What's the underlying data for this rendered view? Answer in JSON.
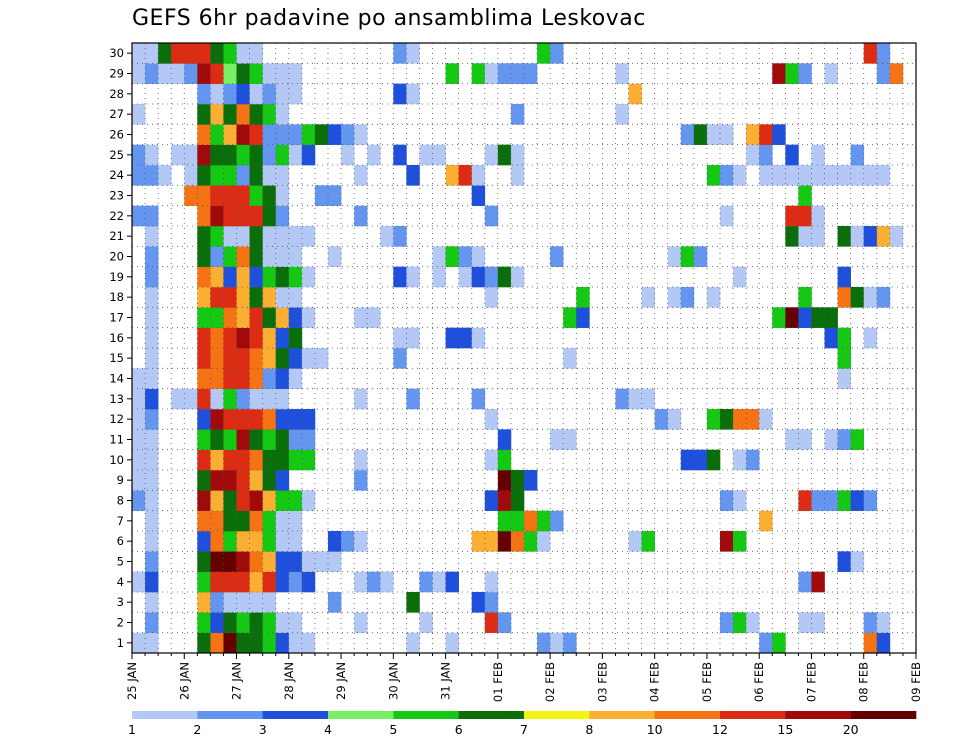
{
  "chart_data": {
    "type": "heatmap",
    "title": "GEFS 6hr padavine po ansamblima Leskovac",
    "members": [
      1,
      2,
      3,
      4,
      5,
      6,
      7,
      8,
      9,
      10,
      11,
      12,
      13,
      14,
      15,
      16,
      17,
      18,
      19,
      20,
      21,
      22,
      23,
      24,
      25,
      26,
      27,
      28,
      29,
      30
    ],
    "x_ticks": [
      "25 JAN",
      "26 JAN",
      "27 JAN",
      "28 JAN",
      "29 JAN",
      "30 JAN",
      "31 JAN",
      "01 FEB",
      "02 FEB",
      "03 FEB",
      "04 FEB",
      "05 FEB",
      "06 FEB",
      "07 FEB",
      "08 FEB",
      "09 FEB"
    ],
    "steps_per_day": 4,
    "n_steps": 60,
    "grid": true,
    "colorbar": {
      "boundaries": [
        "1",
        "2",
        "3",
        "4",
        "5",
        "6",
        "7",
        "8",
        "10",
        "12",
        "15",
        "20"
      ],
      "colors": [
        "#b4c8f5",
        "#6496f0",
        "#1e50dc",
        "#78f064",
        "#14c814",
        "#0a6e0a",
        "#f0f514",
        "#faaf32",
        "#f57314",
        "#dc2d14",
        "#a00a0a",
        "#640000"
      ]
    },
    "values": {
      "30": {
        "0": 1,
        "1": 1,
        "2": 6,
        "3": 14,
        "4": 14,
        "5": 12,
        "6": 6,
        "7": 5,
        "8": 1,
        "9": 1,
        "20": 2,
        "21": 1,
        "31": 5,
        "32": 2,
        "56": 12,
        "57": 2
      },
      "29": {
        "0": 1,
        "1": 2,
        "2": 1,
        "3": 1,
        "4": 2,
        "5": 15,
        "6": 12,
        "7": 4,
        "8": 6,
        "9": 5,
        "10": 1,
        "11": 1,
        "12": 1,
        "24": 5,
        "26": 5,
        "27": 1,
        "28": 2,
        "29": 2,
        "30": 2,
        "37": 1,
        "49": 15,
        "50": 5,
        "51": 2,
        "53": 1,
        "57": 2,
        "58": 10
      },
      "28": {
        "5": 2,
        "6": 1,
        "7": 2,
        "8": 3,
        "9": 1,
        "10": 2,
        "11": 1,
        "12": 1,
        "20": 3,
        "21": 1,
        "38": 8
      },
      "27": {
        "0": 1,
        "5": 6,
        "6": 8,
        "7": 6,
        "8": 10,
        "9": 6,
        "10": 5,
        "11": 1,
        "29": 2,
        "37": 1
      },
      "26": {
        "5": 10,
        "6": 5,
        "7": 8,
        "8": 15,
        "9": 12,
        "10": 2,
        "11": 2,
        "12": 2,
        "13": 5,
        "14": 6,
        "15": 3,
        "16": 2,
        "17": 1,
        "42": 2,
        "43": 6,
        "44": 1,
        "45": 1,
        "47": 8,
        "48": 12,
        "49": 3
      },
      "25": {
        "0": 2,
        "1": 1,
        "3": 1,
        "4": 1,
        "5": 15,
        "6": 6,
        "7": 6,
        "8": 5,
        "9": 6,
        "10": 2,
        "11": 5,
        "12": 1,
        "13": 3,
        "16": 1,
        "18": 1,
        "20": 3,
        "22": 1,
        "23": 1,
        "27": 1,
        "28": 6,
        "29": 1,
        "47": 1,
        "48": 2,
        "50": 3,
        "52": 1,
        "55": 2
      },
      "24": {
        "0": 2,
        "1": 2,
        "2": 1,
        "4": 1,
        "5": 6,
        "6": 5,
        "7": 5,
        "8": 2,
        "9": 6,
        "10": 1,
        "11": 1,
        "17": 1,
        "21": 3,
        "24": 8,
        "25": 12,
        "26": 1,
        "29": 1,
        "44": 5,
        "45": 2,
        "46": 1,
        "48": 1,
        "49": 1,
        "50": 1,
        "51": 1,
        "52": 1,
        "53": 1,
        "54": 1,
        "55": 1,
        "56": 1,
        "57": 1
      },
      "23": {
        "4": 10,
        "5": 10,
        "6": 12,
        "7": 12,
        "8": 12,
        "9": 5,
        "10": 6,
        "11": 1,
        "14": 2,
        "15": 2,
        "26": 3,
        "51": 5
      },
      "22": {
        "0": 2,
        "1": 2,
        "5": 10,
        "6": 15,
        "7": 12,
        "8": 12,
        "9": 12,
        "10": 6,
        "11": 2,
        "17": 2,
        "27": 2,
        "45": 1,
        "50": 12,
        "51": 12,
        "52": 1
      },
      "21": {
        "1": 1,
        "5": 6,
        "6": 5,
        "7": 1,
        "8": 1,
        "9": 6,
        "10": 1,
        "11": 1,
        "12": 1,
        "13": 1,
        "19": 1,
        "20": 2,
        "50": 6,
        "51": 1,
        "52": 1,
        "54": 6,
        "55": 1,
        "56": 3,
        "57": 8,
        "58": 1
      },
      "20": {
        "1": 2,
        "5": 6,
        "6": 2,
        "7": 5,
        "8": 10,
        "9": 6,
        "10": 1,
        "11": 1,
        "12": 1,
        "15": 1,
        "23": 1,
        "24": 5,
        "25": 2,
        "26": 1,
        "32": 2,
        "41": 1,
        "42": 5,
        "43": 2
      },
      "19": {
        "1": 2,
        "5": 10,
        "6": 8,
        "7": 3,
        "8": 8,
        "9": 3,
        "10": 5,
        "11": 6,
        "12": 5,
        "13": 1,
        "20": 3,
        "21": 1,
        "23": 1,
        "25": 1,
        "26": 3,
        "27": 2,
        "28": 6,
        "29": 1,
        "46": 1,
        "54": 3
      },
      "18": {
        "1": 1,
        "5": 8,
        "6": 12,
        "7": 12,
        "8": 8,
        "9": 6,
        "10": 8,
        "11": 1,
        "12": 1,
        "27": 1,
        "34": 5,
        "39": 1,
        "41": 1,
        "42": 2,
        "44": 1,
        "51": 5,
        "54": 10,
        "55": 6,
        "56": 1,
        "57": 2
      },
      "17": {
        "1": 1,
        "5": 5,
        "6": 5,
        "7": 10,
        "8": 8,
        "9": 12,
        "10": 6,
        "11": 8,
        "12": 3,
        "13": 1,
        "17": 1,
        "18": 1,
        "33": 5,
        "34": 3,
        "49": 5,
        "50": 20,
        "51": 3,
        "52": 6,
        "53": 6
      },
      "16": {
        "1": 1,
        "5": 12,
        "6": 10,
        "7": 12,
        "8": 15,
        "9": 12,
        "10": 8,
        "11": 3,
        "12": 6,
        "20": 1,
        "21": 1,
        "24": 3,
        "25": 3,
        "26": 1,
        "53": 3,
        "54": 5,
        "56": 1
      },
      "15": {
        "1": 1,
        "5": 12,
        "6": 10,
        "7": 12,
        "8": 12,
        "9": 10,
        "10": 8,
        "11": 6,
        "12": 3,
        "13": 1,
        "14": 1,
        "20": 2,
        "33": 1,
        "54": 5
      },
      "14": {
        "0": 1,
        "1": 1,
        "5": 10,
        "6": 10,
        "7": 12,
        "8": 12,
        "9": 10,
        "10": 2,
        "11": 3,
        "12": 1,
        "54": 1
      },
      "13": {
        "0": 1,
        "1": 3,
        "3": 1,
        "4": 1,
        "5": 12,
        "6": 1,
        "7": 5,
        "8": 2,
        "9": 1,
        "10": 1,
        "11": 1,
        "17": 1,
        "21": 2,
        "26": 2,
        "37": 2,
        "38": 1,
        "39": 1
      },
      "12": {
        "0": 1,
        "1": 2,
        "5": 3,
        "6": 15,
        "7": 12,
        "8": 12,
        "9": 12,
        "10": 10,
        "11": 3,
        "12": 3,
        "13": 3,
        "27": 1,
        "40": 2,
        "41": 1,
        "44": 5,
        "45": 6,
        "46": 10,
        "47": 10,
        "48": 1
      },
      "11": {
        "0": 1,
        "1": 1,
        "5": 5,
        "6": 6,
        "7": 5,
        "8": 15,
        "9": 6,
        "10": 5,
        "11": 6,
        "12": 2,
        "13": 2,
        "28": 3,
        "32": 1,
        "33": 1,
        "50": 1,
        "51": 1,
        "53": 1,
        "54": 2,
        "55": 5
      },
      "10": {
        "0": 1,
        "1": 1,
        "5": 12,
        "6": 8,
        "7": 12,
        "8": 12,
        "9": 10,
        "10": 6,
        "11": 6,
        "12": 5,
        "13": 5,
        "17": 1,
        "27": 1,
        "28": 5,
        "42": 3,
        "43": 3,
        "44": 6,
        "46": 1,
        "47": 2
      },
      "9": {
        "0": 1,
        "1": 1,
        "5": 6,
        "6": 15,
        "7": 15,
        "8": 12,
        "9": 8,
        "10": 6,
        "11": 3,
        "17": 2,
        "28": 20,
        "29": 6,
        "30": 3
      },
      "8": {
        "0": 2,
        "1": 1,
        "5": 15,
        "6": 8,
        "7": 6,
        "8": 12,
        "9": 15,
        "10": 8,
        "11": 5,
        "12": 5,
        "13": 1,
        "27": 3,
        "28": 15,
        "29": 6,
        "45": 2,
        "46": 1,
        "51": 12,
        "52": 2,
        "53": 2,
        "54": 5,
        "55": 3,
        "56": 2
      },
      "7": {
        "1": 1,
        "5": 10,
        "6": 10,
        "7": 6,
        "8": 6,
        "9": 10,
        "10": 5,
        "11": 1,
        "12": 1,
        "28": 5,
        "29": 5,
        "30": 10,
        "31": 5,
        "32": 2,
        "48": 8
      },
      "6": {
        "1": 1,
        "5": 3,
        "6": 10,
        "7": 5,
        "8": 8,
        "9": 8,
        "10": 5,
        "11": 1,
        "12": 1,
        "15": 3,
        "16": 2,
        "17": 1,
        "26": 8,
        "27": 8,
        "28": 20,
        "29": 10,
        "30": 5,
        "31": 1,
        "38": 1,
        "39": 5,
        "45": 15,
        "46": 5
      },
      "5": {
        "1": 2,
        "5": 6,
        "6": 20,
        "7": 20,
        "8": 15,
        "9": 10,
        "10": 8,
        "11": 3,
        "12": 3,
        "13": 1,
        "14": 1,
        "15": 1,
        "54": 3,
        "55": 1
      },
      "4": {
        "0": 1,
        "1": 3,
        "5": 5,
        "6": 12,
        "7": 12,
        "8": 12,
        "9": 8,
        "10": 12,
        "11": 3,
        "12": 2,
        "13": 3,
        "17": 1,
        "18": 2,
        "19": 1,
        "22": 2,
        "23": 1,
        "24": 3,
        "27": 1,
        "51": 2,
        "52": 15
      },
      "3": {
        "1": 1,
        "5": 8,
        "6": 2,
        "7": 1,
        "8": 1,
        "9": 1,
        "10": 1,
        "15": 2,
        "21": 6,
        "26": 3,
        "27": 2
      },
      "2": {
        "1": 2,
        "5": 5,
        "6": 3,
        "7": 6,
        "8": 5,
        "9": 6,
        "10": 5,
        "11": 1,
        "12": 1,
        "17": 1,
        "22": 1,
        "27": 12,
        "28": 2,
        "45": 2,
        "46": 5,
        "47": 1,
        "51": 1,
        "52": 1,
        "56": 2,
        "57": 1
      },
      "1": {
        "0": 1,
        "1": 1,
        "5": 6,
        "6": 10,
        "7": 20,
        "8": 6,
        "9": 6,
        "10": 5,
        "11": 3,
        "12": 1,
        "13": 1,
        "21": 1,
        "24": 1,
        "31": 2,
        "32": 1,
        "33": 2,
        "48": 2,
        "49": 5,
        "56": 10,
        "57": 3
      }
    }
  }
}
